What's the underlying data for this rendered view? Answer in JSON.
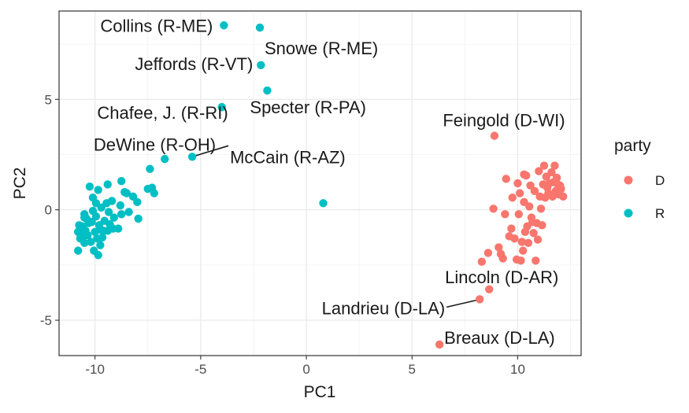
{
  "chart_data": {
    "type": "scatter",
    "title": "",
    "xlabel": "PC1",
    "ylabel": "PC2",
    "xlim": [
      -11.7,
      13.0
    ],
    "ylim": [
      -6.6,
      9.0
    ],
    "x_ticks": [
      -10,
      -5,
      0,
      5,
      10
    ],
    "y_ticks": [
      -5,
      0,
      5
    ],
    "x_tick_labels": [
      "-10",
      "-5",
      "0",
      "5",
      "10"
    ],
    "y_tick_labels": [
      "-5",
      "0",
      "5"
    ],
    "grid": true,
    "legend": {
      "title": "party",
      "position": "right",
      "entries": [
        {
          "label": "D",
          "color": "#F8766D"
        },
        {
          "label": "R",
          "color": "#00BFC4"
        }
      ]
    },
    "series": [
      {
        "name": "D",
        "color": "#F8766D",
        "points": [
          [
            8.9,
            3.35
          ],
          [
            8.65,
            -3.6
          ],
          [
            8.2,
            -4.05
          ],
          [
            6.3,
            -6.1
          ],
          [
            8.3,
            -2.35
          ],
          [
            8.6,
            -1.95
          ],
          [
            8.85,
            0.05
          ],
          [
            9.1,
            -1.7
          ],
          [
            9.2,
            -2.0
          ],
          [
            9.3,
            -2.2
          ],
          [
            9.4,
            -0.2
          ],
          [
            9.45,
            1.4
          ],
          [
            9.6,
            -1.2
          ],
          [
            9.7,
            -0.85
          ],
          [
            9.75,
            0.55
          ],
          [
            9.85,
            -1.3
          ],
          [
            9.95,
            -2.25
          ],
          [
            10.0,
            1.2
          ],
          [
            10.05,
            -0.2
          ],
          [
            10.1,
            0.75
          ],
          [
            10.15,
            -2.3
          ],
          [
            10.2,
            -1.45
          ],
          [
            10.25,
            -1.85
          ],
          [
            10.3,
            1.6
          ],
          [
            10.3,
            0.35
          ],
          [
            10.35,
            -1.0
          ],
          [
            10.4,
            1.55
          ],
          [
            10.45,
            -0.75
          ],
          [
            10.5,
            -1.5
          ],
          [
            10.55,
            0.15
          ],
          [
            10.6,
            1.1
          ],
          [
            10.65,
            -0.35
          ],
          [
            10.7,
            -0.55
          ],
          [
            10.75,
            -1.05
          ],
          [
            10.8,
            0.85
          ],
          [
            10.85,
            -2.3
          ],
          [
            10.9,
            -0.6
          ],
          [
            10.95,
            -1.35
          ],
          [
            11.0,
            1.75
          ],
          [
            11.05,
            0.6
          ],
          [
            11.1,
            0.05
          ],
          [
            11.15,
            -0.7
          ],
          [
            11.2,
            1.15
          ],
          [
            11.25,
            2.0
          ],
          [
            11.3,
            0.55
          ],
          [
            11.35,
            1.5
          ],
          [
            11.4,
            1.0
          ],
          [
            11.45,
            0.75
          ],
          [
            11.5,
            1.2
          ],
          [
            11.6,
            1.7
          ],
          [
            11.65,
            0.6
          ],
          [
            11.7,
            1.25
          ],
          [
            11.75,
            2.0
          ],
          [
            11.8,
            0.85
          ],
          [
            11.85,
            1.45
          ],
          [
            11.9,
            1.15
          ],
          [
            11.95,
            0.7
          ],
          [
            12.0,
            1.1
          ],
          [
            12.05,
            0.95
          ],
          [
            12.15,
            0.6
          ]
        ]
      },
      {
        "name": "R",
        "color": "#00BFC4",
        "points": [
          [
            -3.9,
            8.35
          ],
          [
            -2.2,
            8.25
          ],
          [
            -2.15,
            6.55
          ],
          [
            -1.85,
            5.4
          ],
          [
            -4.0,
            4.65
          ],
          [
            -5.4,
            2.4
          ],
          [
            0.8,
            0.3
          ],
          [
            -6.7,
            2.3
          ],
          [
            -7.4,
            1.85
          ],
          [
            -7.3,
            1.0
          ],
          [
            -7.2,
            0.75
          ],
          [
            -7.5,
            0.95
          ],
          [
            -8.0,
            0.35
          ],
          [
            -7.95,
            -0.4
          ],
          [
            -8.4,
            -0.1
          ],
          [
            -8.5,
            0.75
          ],
          [
            -8.6,
            0.8
          ],
          [
            -8.75,
            -0.2
          ],
          [
            -8.75,
            1.3
          ],
          [
            -8.8,
            0.2
          ],
          [
            -8.9,
            -0.85
          ],
          [
            -9.1,
            -0.35
          ],
          [
            -9.15,
            -0.85
          ],
          [
            -9.2,
            0.4
          ],
          [
            -9.3,
            -0.65
          ],
          [
            -9.35,
            -0.1
          ],
          [
            -9.4,
            -0.95
          ],
          [
            -9.45,
            0.3
          ],
          [
            -9.55,
            -0.5
          ],
          [
            -9.6,
            -0.95
          ],
          [
            -9.65,
            -1.25
          ],
          [
            -9.7,
            0.1
          ],
          [
            -9.75,
            -1.6
          ],
          [
            -9.8,
            -0.7
          ],
          [
            -9.85,
            -2.05
          ],
          [
            -9.85,
            0.9
          ],
          [
            -9.9,
            -1.3
          ],
          [
            -9.95,
            -0.3
          ],
          [
            -10.0,
            -1.0
          ],
          [
            -10.05,
            -1.85
          ],
          [
            -10.1,
            -0.05
          ],
          [
            -10.1,
            0.55
          ],
          [
            -10.15,
            -0.55
          ],
          [
            -10.2,
            -1.45
          ],
          [
            -10.25,
            1.05
          ],
          [
            -10.3,
            -0.6
          ],
          [
            -10.35,
            -1.15
          ],
          [
            -10.4,
            -0.4
          ],
          [
            -10.45,
            -0.95
          ],
          [
            -10.5,
            -0.2
          ],
          [
            -10.5,
            -1.5
          ],
          [
            -10.55,
            -1.2
          ],
          [
            -10.6,
            -0.75
          ],
          [
            -10.65,
            -1.05
          ],
          [
            -10.7,
            -1.3
          ],
          [
            -10.75,
            -0.7
          ],
          [
            -10.8,
            -1.0
          ],
          [
            -10.8,
            -1.85
          ],
          [
            -10.5,
            -0.35
          ],
          [
            -9.75,
            -0.9
          ],
          [
            -9.95,
            0.3
          ],
          [
            -9.4,
            1.15
          ],
          [
            -8.2,
            0.6
          ]
        ]
      }
    ],
    "annotations": [
      {
        "text": "Collins (R-ME)",
        "x": -3.9,
        "y": 8.35
      },
      {
        "text": "Snowe (R-ME)",
        "x": -2.2,
        "y": 8.25
      },
      {
        "text": "Jeffords (R-VT)",
        "x": -2.15,
        "y": 6.55
      },
      {
        "text": "Specter (R-PA)",
        "x": -1.85,
        "y": 5.4
      },
      {
        "text": "Chafee, J.  (R-RI)",
        "x": -4.0,
        "y": 4.65
      },
      {
        "text": "DeWine (R-OH)",
        "x": -5.4,
        "y": 2.4
      },
      {
        "text": "McCain (R-AZ)",
        "x": -5.4,
        "y": 2.4
      },
      {
        "text": "Feingold (D-WI)",
        "x": 8.9,
        "y": 3.35
      },
      {
        "text": "Lincoln (D-AR)",
        "x": 8.65,
        "y": -3.6
      },
      {
        "text": "Landrieu (D-LA)",
        "x": 8.2,
        "y": -4.05
      },
      {
        "text": "Breaux (D-LA)",
        "x": 6.3,
        "y": -6.1
      }
    ]
  }
}
